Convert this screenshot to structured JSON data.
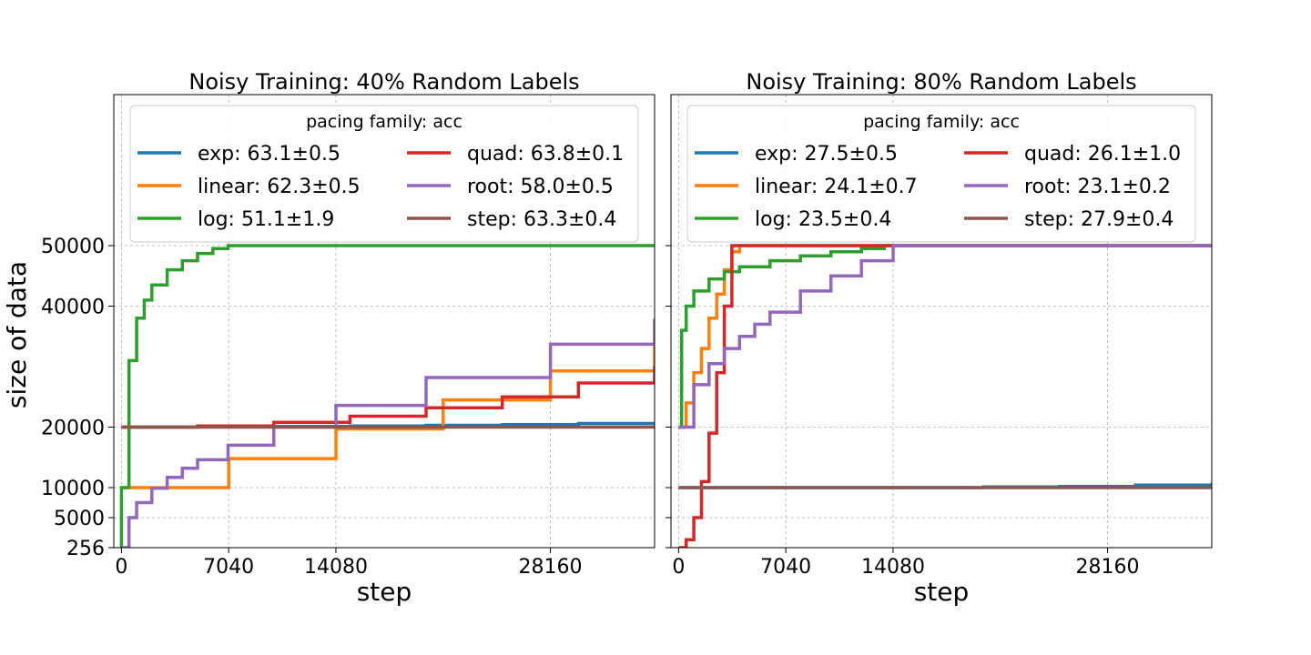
{
  "chart_data": {
    "type": "line",
    "ylabel": "size of data",
    "xlabel": "step",
    "xticks": [
      0,
      7040,
      14080,
      28160
    ],
    "yticks": [
      256,
      5000,
      10000,
      20000,
      40000,
      50000
    ],
    "xlim": [
      -500,
      35000
    ],
    "ylim": [
      256,
      50000
    ],
    "y_scale": "piecewise: 256→10000 compressed, 10000→50000 linear",
    "grid": true,
    "legend_placement": "top, inside axes, two columns",
    "colors": {
      "exp": "#1f77b4",
      "linear": "#ff7f0e",
      "log": "#2ca02c",
      "quad": "#d62728",
      "root": "#9467bd",
      "step": "#8c564b"
    },
    "panels": [
      {
        "title": "Noisy Training: 40% Random Labels",
        "legend_title": "pacing family: acc",
        "show_ylabel": true,
        "show_ytick_labels": true,
        "series": [
          {
            "name": "exp",
            "label": "exp: 63.1±0.5",
            "x": [
              0,
              5000,
              10000,
              15000,
              20000,
              25000,
              30000,
              35000
            ],
            "y": [
              20000,
              20050,
              20120,
              20200,
              20300,
              20400,
              20600,
              20800
            ]
          },
          {
            "name": "linear",
            "label": "linear: 62.3±0.5",
            "x": [
              0,
              7040,
              14080,
              21120,
              28160,
              35000
            ],
            "y": [
              10000,
              14800,
              19700,
              24500,
              29300,
              34000
            ]
          },
          {
            "name": "log",
            "label": "log: 51.1±1.9",
            "x": [
              0,
              0,
              500,
              1000,
              1500,
              2000,
              3000,
              4000,
              5000,
              6000,
              7000,
              35000
            ],
            "y": [
              256,
              10000,
              31000,
              38000,
              41000,
              43500,
              46000,
              47500,
              48700,
              49500,
              50000,
              50000
            ]
          },
          {
            "name": "quad",
            "label": "quad: 63.8±0.1",
            "x": [
              0,
              5000,
              10000,
              15000,
              20000,
              25000,
              30000,
              35000
            ],
            "y": [
              20000,
              20200,
              20800,
              21800,
              23200,
              25000,
              27300,
              30000
            ]
          },
          {
            "name": "root",
            "label": "root: 58.0±0.5",
            "x": [
              0,
              500,
              1000,
              2000,
              3000,
              4000,
              5000,
              7000,
              10000,
              14080,
              20000,
              28160,
              35000
            ],
            "y": [
              256,
              5000,
              7500,
              9900,
              11700,
              13200,
              14600,
              17000,
              20000,
              23600,
              28200,
              33700,
              37900
            ]
          },
          {
            "name": "step",
            "label": "step: 63.3±0.4",
            "x": [
              0,
              35000
            ],
            "y": [
              20000,
              20000
            ]
          }
        ]
      },
      {
        "title": "Noisy Training: 80% Random Labels",
        "legend_title": "pacing family: acc",
        "show_ylabel": false,
        "show_ytick_labels": false,
        "series": [
          {
            "name": "exp",
            "label": "exp: 27.5±0.5",
            "x": [
              0,
              10000,
              20000,
              25000,
              30000,
              35000
            ],
            "y": [
              10000,
              10000,
              10100,
              10200,
              10400,
              10800
            ]
          },
          {
            "name": "linear",
            "label": "linear: 24.1±0.7",
            "x": [
              0,
              500,
              1000,
              1500,
              2000,
              2500,
              3000,
              3500,
              4000,
              35000
            ],
            "y": [
              20000,
              24000,
              29000,
              33000,
              38000,
              42000,
              46000,
              49000,
              50000,
              50000
            ]
          },
          {
            "name": "log",
            "label": "log: 23.5±0.4",
            "x": [
              0,
              200,
              500,
              1000,
              2000,
              3000,
              4000,
              6000,
              8000,
              10000,
              12000,
              13500,
              35000
            ],
            "y": [
              20000,
              36000,
              40000,
              42500,
              44500,
              45700,
              46500,
              47500,
              48300,
              49000,
              49500,
              50000,
              50000
            ]
          },
          {
            "name": "quad",
            "label": "quad: 26.1±1.0",
            "x": [
              0,
              500,
              1000,
              1500,
              2000,
              2500,
              3000,
              3500,
              4000,
              35000
            ],
            "y": [
              256,
              1500,
              5000,
              11000,
              19000,
              29000,
              40000,
              50000,
              50000,
              50000
            ]
          },
          {
            "name": "root",
            "label": "root: 23.1±0.2",
            "x": [
              0,
              1000,
              2000,
              3000,
              4000,
              5000,
              6000,
              8000,
              10000,
              12000,
              14080,
              35000
            ],
            "y": [
              20000,
              27000,
              30500,
              33000,
              35000,
              37000,
              39000,
              42500,
              45000,
              47500,
              50000,
              50000
            ]
          },
          {
            "name": "step",
            "label": "step: 27.9±0.4",
            "x": [
              0,
              35000
            ],
            "y": [
              10000,
              10000
            ]
          }
        ]
      }
    ]
  }
}
